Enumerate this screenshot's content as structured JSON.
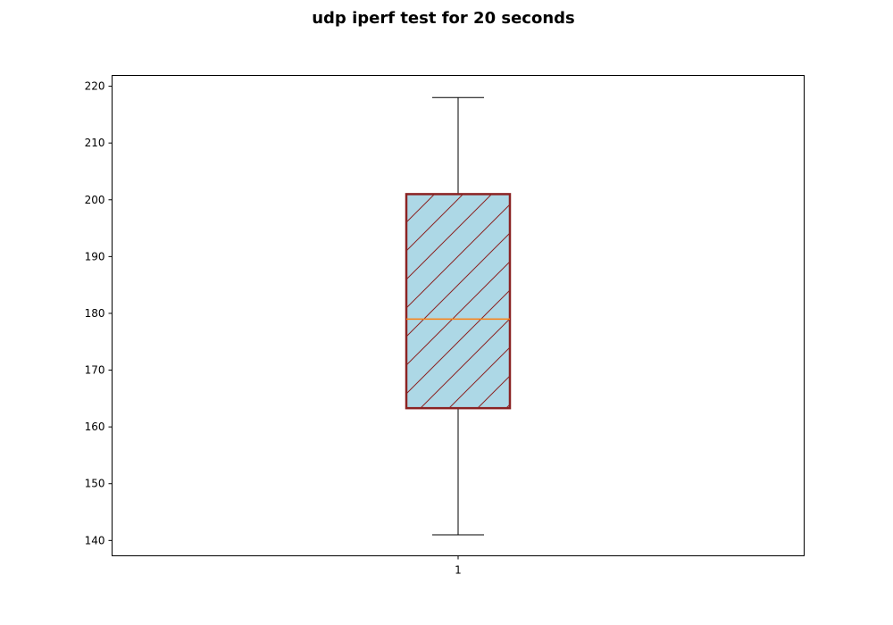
{
  "title": "udp iperf test for 20 seconds",
  "chart_data": {
    "type": "boxplot",
    "title": "udp iperf test for 20 seconds",
    "xlabel": "",
    "ylabel": "",
    "categories": [
      "1"
    ],
    "boxes": [
      {
        "label": "1",
        "whislo": 141,
        "q1": 163.3,
        "median": 179,
        "q3": 201,
        "whishi": 218
      }
    ],
    "ylim": [
      137.3,
      221.9
    ],
    "yticks": [
      140,
      150,
      160,
      170,
      180,
      190,
      200,
      210,
      220
    ],
    "grid": false,
    "colors": {
      "box_fill": "#add8e6",
      "box_edge": "#8b2323",
      "hatch": "#8b2323",
      "median": "#ff7f0e",
      "whisker": "#000000"
    }
  }
}
